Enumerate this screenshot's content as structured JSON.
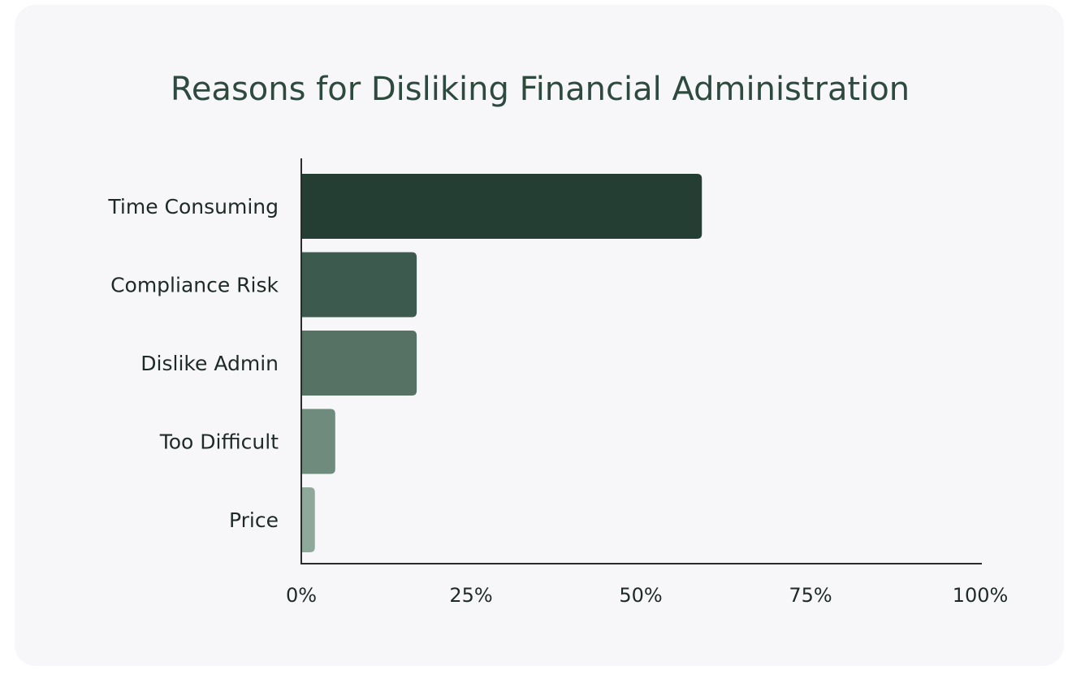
{
  "chart_data": {
    "type": "bar",
    "orientation": "horizontal",
    "title": "Reasons for Disliking Financial Administration",
    "categories": [
      "Time Consuming",
      "Compliance Risk",
      "Dislike Admin",
      "Too Difficult",
      "Price"
    ],
    "values": [
      59,
      17,
      17,
      5,
      2
    ],
    "xlim": [
      0,
      100
    ],
    "xticks": [
      "0%",
      "25%",
      "50%",
      "75%",
      "100%"
    ],
    "xtick_values": [
      0,
      25,
      50,
      75,
      100
    ],
    "grid": false,
    "legend": "none",
    "colors": [
      "#243e34",
      "#3d5a4e",
      "#557265",
      "#6f8b7e",
      "#8ea89b"
    ],
    "title_color": "#2e4a3f",
    "background": "#f7f7f9"
  }
}
